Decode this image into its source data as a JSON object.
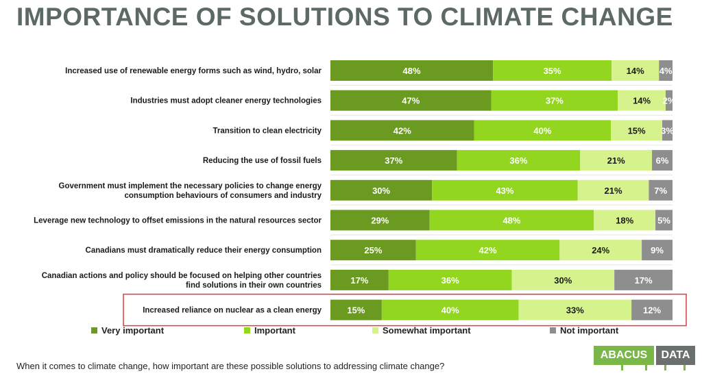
{
  "title": "IMPORTANCE OF SOLUTIONS TO CLIMATE CHANGE",
  "question": "When it comes to climate change, how important are these possible solutions to addressing climate change?",
  "logo": {
    "part1": "ABACUS",
    "part2": "DATA"
  },
  "colors": {
    "very_important": "#6a9a1f",
    "important": "#92d61f",
    "somewhat_important": "#d6f28c",
    "not_important": "#8e8e8e",
    "highlight_box": "#e0393e"
  },
  "chart_data": {
    "type": "bar",
    "orientation": "horizontal",
    "stacked": true,
    "value_unit": "%",
    "categories": [
      [
        "Increased use of renewable energy forms such as wind, hydro, solar"
      ],
      [
        "Industries must adopt cleaner energy technologies"
      ],
      [
        "Transition to clean electricity"
      ],
      [
        "Reducing the use of fossil fuels"
      ],
      [
        "Government must implement the necessary policies to change energy",
        "consumption behaviours of consumers and industry"
      ],
      [
        "Leverage new technology to offset emissions in the natural resources sector"
      ],
      [
        "Canadians must dramatically reduce their energy consumption"
      ],
      [
        "Canadian actions and policy should be focused on helping other countries",
        "find solutions in their own countries"
      ],
      [
        "Increased reliance on nuclear as a clean energy"
      ]
    ],
    "series": [
      {
        "name": "Very important",
        "values": [
          48,
          47,
          42,
          37,
          30,
          29,
          25,
          17,
          15
        ]
      },
      {
        "name": "Important",
        "values": [
          35,
          37,
          40,
          36,
          43,
          48,
          42,
          36,
          40
        ]
      },
      {
        "name": "Somewhat important",
        "values": [
          14,
          14,
          15,
          21,
          21,
          18,
          24,
          30,
          33
        ]
      },
      {
        "name": "Not important",
        "values": [
          4,
          2,
          3,
          6,
          7,
          5,
          9,
          17,
          12
        ]
      }
    ],
    "highlighted_category_index": 8,
    "legend_position": "bottom"
  }
}
